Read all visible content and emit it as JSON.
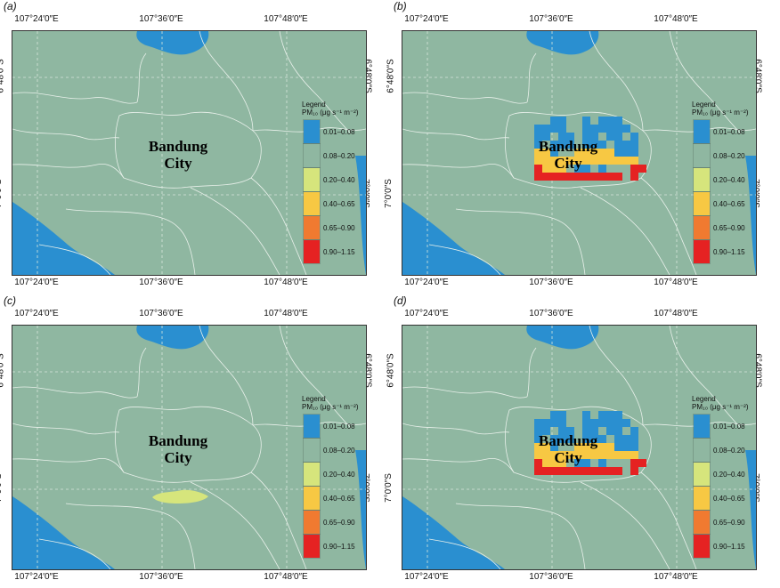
{
  "panels": [
    {
      "label": "(a)",
      "variant": "base"
    },
    {
      "label": "(b)",
      "variant": "grid"
    },
    {
      "label": "(c)",
      "variant": "small"
    },
    {
      "label": "(d)",
      "variant": "grid"
    }
  ],
  "axes": {
    "lon_ticks": [
      "107°24′0″E",
      "107°36′0″E",
      "107°48′0″E"
    ],
    "lat_ticks": [
      "6°48′0″S",
      "7°0′0″S"
    ]
  },
  "city_label": {
    "line1": "Bandung",
    "line2": "City"
  },
  "legend": {
    "title": "Legend",
    "subtitle": "PM₁₀ (μg s⁻¹ m⁻²)",
    "classes": [
      {
        "label": "0.01–0.08",
        "color": "#2a8fd0"
      },
      {
        "label": "0.08–0.20",
        "color": "#8fb7a1"
      },
      {
        "label": "0.20–0.40",
        "color": "#d6e57c"
      },
      {
        "label": "0.40–0.65",
        "color": "#f7c843"
      },
      {
        "label": "0.65–0.90",
        "color": "#f07a30"
      },
      {
        "label": "0.90–1.15",
        "color": "#e52222"
      }
    ]
  },
  "colors": {
    "land": "#8fb7a1",
    "water": "#2a8fd0",
    "boundary": "#e8f0ea"
  }
}
